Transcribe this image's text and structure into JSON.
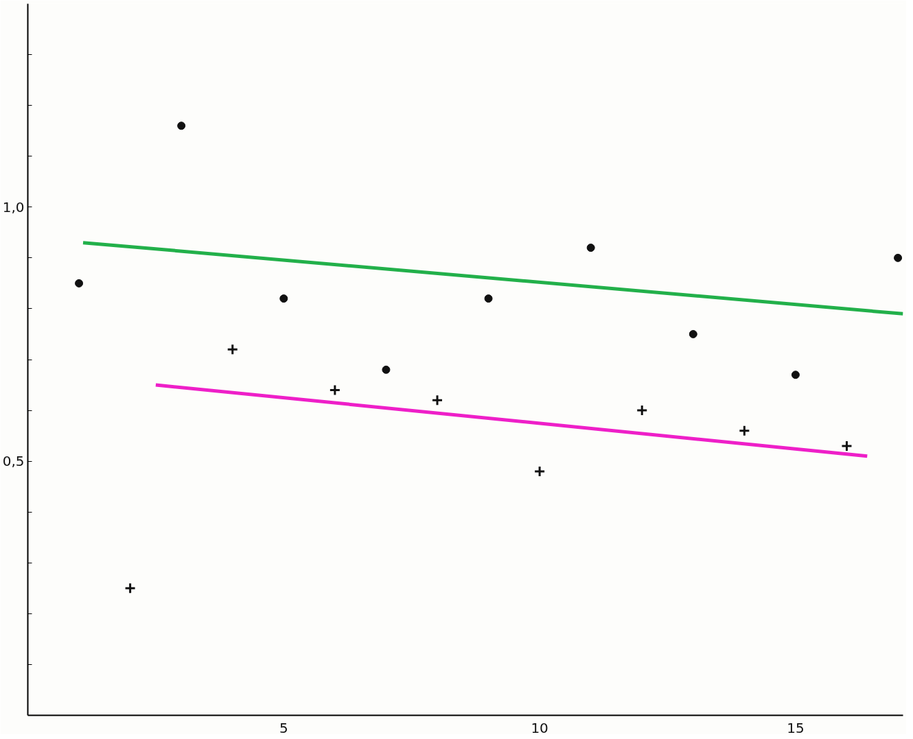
{
  "chart_data": {
    "type": "scatter",
    "xlim": [
      0,
      17.1
    ],
    "ylim": [
      0,
      1.4
    ],
    "xticks": [
      5,
      10,
      15
    ],
    "yticks": [
      {
        "value": 0.1,
        "label": null
      },
      {
        "value": 0.2,
        "label": null
      },
      {
        "value": 0.3,
        "label": null
      },
      {
        "value": 0.4,
        "label": null
      },
      {
        "value": 0.5,
        "label": "0,5"
      },
      {
        "value": 0.6,
        "label": null
      },
      {
        "value": 0.7,
        "label": null
      },
      {
        "value": 0.8,
        "label": null
      },
      {
        "value": 0.9,
        "label": null
      },
      {
        "value": 1.0,
        "label": "1,0"
      },
      {
        "value": 1.1,
        "label": null
      },
      {
        "value": 1.2,
        "label": null
      },
      {
        "value": 1.3,
        "label": null
      }
    ],
    "grid": false,
    "series": [
      {
        "marker": "circle",
        "color": "#111111",
        "x": [
          1,
          3,
          5,
          7,
          9,
          11,
          13,
          15,
          17
        ],
        "values": [
          0.85,
          1.16,
          0.82,
          0.68,
          0.82,
          0.92,
          0.75,
          0.67,
          0.9
        ]
      },
      {
        "marker": "cross",
        "color": "#111111",
        "x": [
          2,
          4,
          6,
          8,
          10,
          12,
          14,
          16
        ],
        "values": [
          0.25,
          0.72,
          0.64,
          0.62,
          0.48,
          0.6,
          0.56,
          0.53
        ]
      },
      {
        "type": "line",
        "color": "#22b04a",
        "x": [
          1.08,
          17.1
        ],
        "values": [
          0.93,
          0.79
        ]
      },
      {
        "type": "line",
        "color": "#ee1fc8",
        "x": [
          2.5,
          16.4
        ],
        "values": [
          0.65,
          0.51
        ]
      }
    ]
  }
}
